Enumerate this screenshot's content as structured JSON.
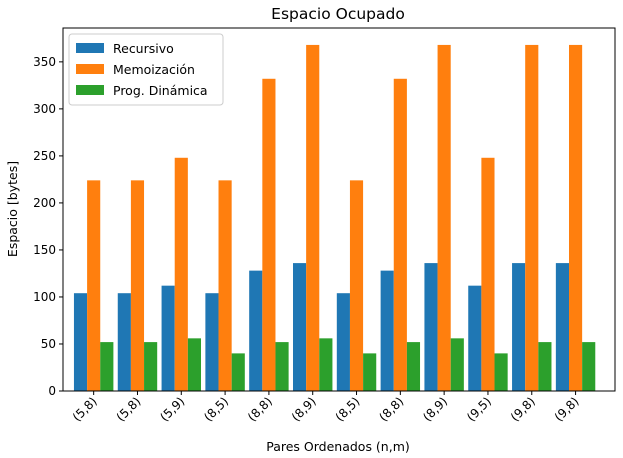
{
  "chart_data": {
    "type": "bar",
    "title": "Espacio Ocupado",
    "xlabel": "Pares Ordenados (n,m)",
    "ylabel": "Espacio [bytes]",
    "categories": [
      "(5,8)",
      "(5,8)",
      "(5,9)",
      "(8,5)",
      "(8,8)",
      "(8,9)",
      "(8,5)",
      "(8,8)",
      "(8,9)",
      "(9,5)",
      "(9,8)",
      "(9,8)"
    ],
    "series": [
      {
        "name": "Recursivo",
        "color": "#1f77b4",
        "values": [
          104,
          104,
          112,
          104,
          128,
          136,
          104,
          128,
          136,
          112,
          136,
          136
        ]
      },
      {
        "name": "Memoización",
        "color": "#ff7f0e",
        "values": [
          224,
          224,
          248,
          224,
          332,
          368,
          224,
          332,
          368,
          248,
          368,
          368
        ]
      },
      {
        "name": "Prog. Dinámica",
        "color": "#2ca02c",
        "values": [
          52,
          52,
          56,
          40,
          52,
          56,
          40,
          52,
          56,
          40,
          52,
          52
        ]
      }
    ],
    "ylim": [
      0,
      386
    ],
    "yticks": [
      0,
      50,
      100,
      150,
      200,
      250,
      300,
      350
    ],
    "legend": "top-left",
    "grid": false
  }
}
